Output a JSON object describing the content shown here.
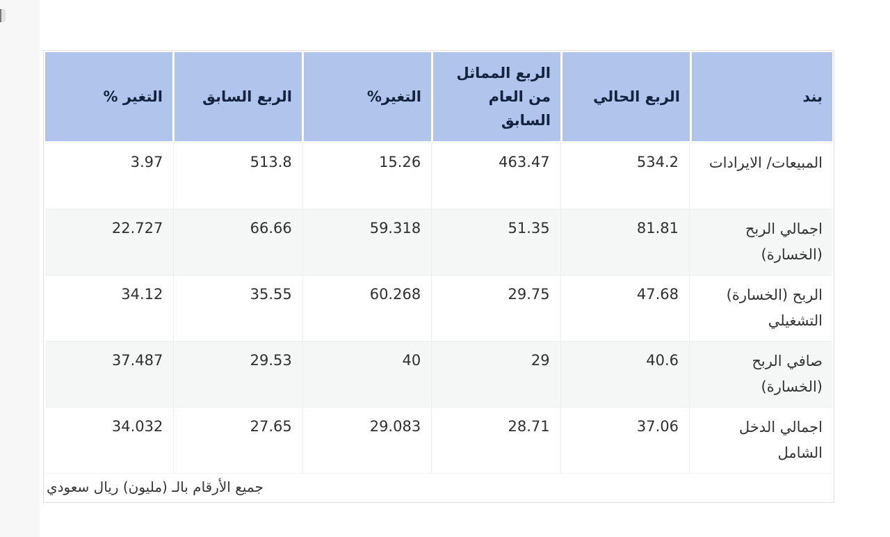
{
  "colors": {
    "header_bg": "#b1c5ec",
    "header_text": "#13233f",
    "positive_value": "#19a05a",
    "neutral_value": "#2f2f2f",
    "row_alt_bg": "#f5f6f6",
    "card_border": "#e2e2e2",
    "gutter_bg": "#f7f7f8"
  },
  "table": {
    "columns": [
      {
        "key": "item",
        "label": "بند"
      },
      {
        "key": "current_quarter",
        "label": "الربع الحالي"
      },
      {
        "key": "same_quarter_prev_year",
        "label": "الربع المماثل من العام السابق"
      },
      {
        "key": "change_yoy",
        "label": "التغير%"
      },
      {
        "key": "previous_quarter",
        "label": "الربع السابق"
      },
      {
        "key": "change_qoq",
        "label": "التغير %"
      }
    ],
    "rows": [
      {
        "item": "المبيعات/ الايرادات",
        "cells": [
          {
            "v": "534.2",
            "c": "green"
          },
          {
            "v": "463.47",
            "c": "green"
          },
          {
            "v": "15.26",
            "c": "dark"
          },
          {
            "v": "513.8",
            "c": "green"
          },
          {
            "v": "3.97",
            "c": "dark"
          }
        ]
      },
      {
        "item": "اجمالي الربح (الخسارة)",
        "cells": [
          {
            "v": "81.81",
            "c": "green"
          },
          {
            "v": "51.35",
            "c": "green"
          },
          {
            "v": "59.318",
            "c": "dark"
          },
          {
            "v": "66.66",
            "c": "green"
          },
          {
            "v": "22.727",
            "c": "dark"
          }
        ]
      },
      {
        "item": "الربح (الخسارة) التشغيلي",
        "cells": [
          {
            "v": "47.68",
            "c": "green"
          },
          {
            "v": "29.75",
            "c": "green"
          },
          {
            "v": "60.268",
            "c": "dark"
          },
          {
            "v": "35.55",
            "c": "green"
          },
          {
            "v": "34.12",
            "c": "dark"
          }
        ]
      },
      {
        "item": "صافي الربح (الخسارة)",
        "cells": [
          {
            "v": "40.6",
            "c": "green"
          },
          {
            "v": "29",
            "c": "green"
          },
          {
            "v": "40",
            "c": "dark"
          },
          {
            "v": "29.53",
            "c": "green"
          },
          {
            "v": "37.487",
            "c": "dark"
          }
        ]
      },
      {
        "item": "اجمالي الدخل الشامل",
        "cells": [
          {
            "v": "37.06",
            "c": "green"
          },
          {
            "v": "28.71",
            "c": "green"
          },
          {
            "v": "29.083",
            "c": "dark"
          },
          {
            "v": "27.65",
            "c": "green"
          },
          {
            "v": "34.032",
            "c": "dark"
          }
        ]
      }
    ],
    "footnote": "جميع الأرقام بالـ (مليون) ريال سعودي"
  }
}
